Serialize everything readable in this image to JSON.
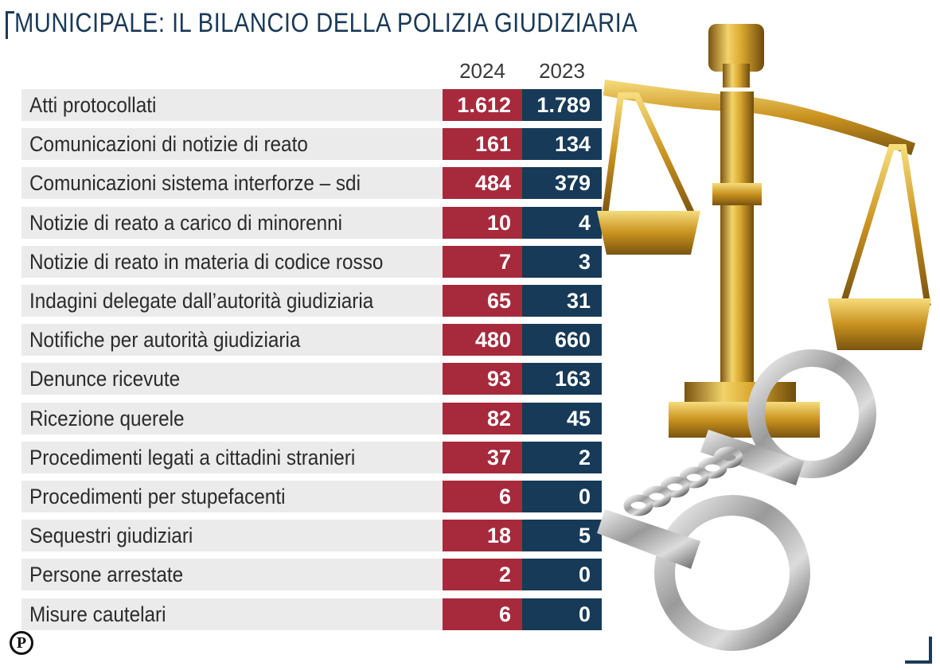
{
  "chart_data": {
    "type": "table",
    "title": "MUNICIPALE: IL BILANCIO DELLA POLIZIA GIUDIZIARIA",
    "columns": [
      "2024",
      "2023"
    ],
    "rows": [
      {
        "label": "Atti protocollati",
        "values": [
          "1.612",
          "1.789"
        ]
      },
      {
        "label": "Comunicazioni di notizie di reato",
        "values": [
          "161",
          "134"
        ]
      },
      {
        "label": "Comunicazioni sistema interforze – sdi",
        "values": [
          "484",
          "379"
        ]
      },
      {
        "label": "Notizie di reato a carico di minorenni",
        "values": [
          "10",
          "4"
        ]
      },
      {
        "label": "Notizie di reato in materia di codice rosso",
        "values": [
          "7",
          "3"
        ]
      },
      {
        "label": "Indagini delegate dall’autorità giudiziaria",
        "values": [
          "65",
          "31"
        ]
      },
      {
        "label": "Notifiche per autorità giudiziaria",
        "values": [
          "480",
          "660"
        ]
      },
      {
        "label": "Denunce ricevute",
        "values": [
          "93",
          "163"
        ]
      },
      {
        "label": "Ricezione querele",
        "values": [
          "82",
          "45"
        ]
      },
      {
        "label": "Procedimenti legati a cittadini stranieri",
        "values": [
          "37",
          "2"
        ]
      },
      {
        "label": "Procedimenti per stupefacenti",
        "values": [
          "6",
          "0"
        ]
      },
      {
        "label": "Sequestri giudiziari",
        "values": [
          "18",
          "5"
        ]
      },
      {
        "label": "Persone arrestate",
        "values": [
          "2",
          "0"
        ]
      },
      {
        "label": "Misure cautelari",
        "values": [
          "6",
          "0"
        ]
      }
    ]
  },
  "colors": {
    "title": "#1b3a57",
    "col_2024": "#a62a3c",
    "col_2023": "#173a58",
    "label_bg": "#ebebeb"
  },
  "icons": {
    "illustration": "scales-of-justice-and-handcuffs-icon",
    "publisher": "p-circle-logo-icon"
  },
  "logo_text": "P"
}
